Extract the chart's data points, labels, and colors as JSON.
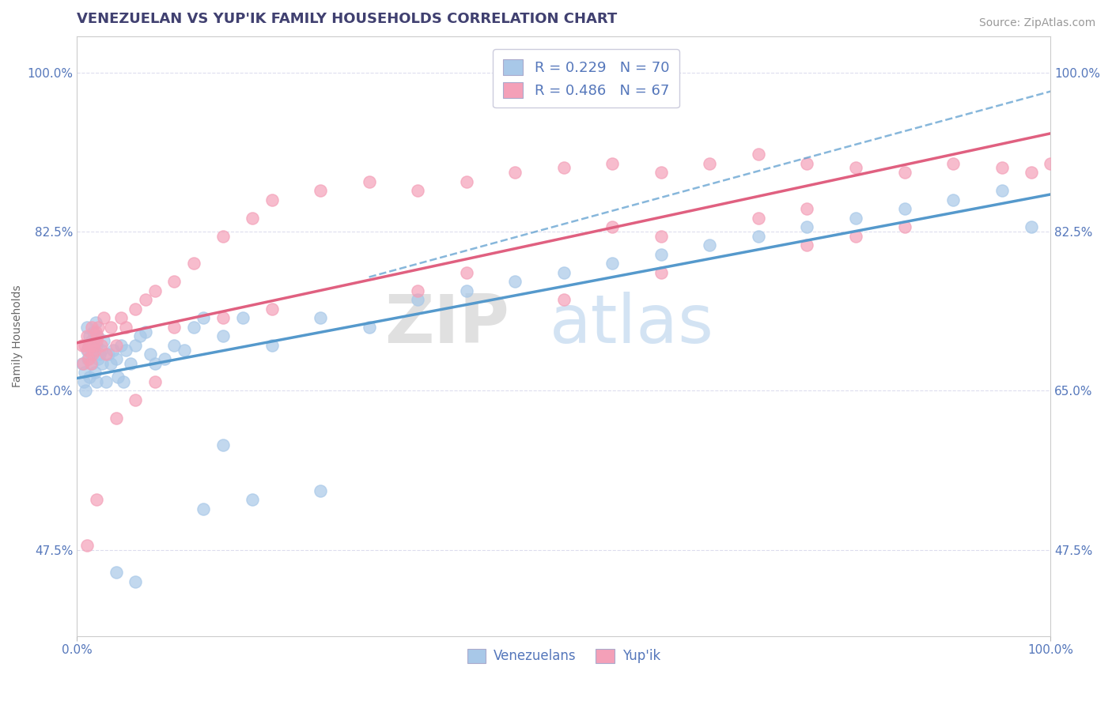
{
  "title": "VENEZUELAN VS YUP'IK FAMILY HOUSEHOLDS CORRELATION CHART",
  "source": "Source: ZipAtlas.com",
  "ylabel": "Family Households",
  "legend_blue_r": "R = 0.229",
  "legend_blue_n": "N = 70",
  "legend_pink_r": "R = 0.486",
  "legend_pink_n": "N = 67",
  "legend_label_blue": "Venezuelans",
  "legend_label_pink": "Yup'ik",
  "blue_color": "#A8C8E8",
  "pink_color": "#F4A0B8",
  "trend_blue_color": "#5599CC",
  "trend_pink_color": "#E06080",
  "title_color": "#404070",
  "axis_color": "#5577BB",
  "watermark_zip": "ZIP",
  "watermark_atlas": "atlas",
  "xlim": [
    0.0,
    1.0
  ],
  "ylim": [
    0.38,
    1.04
  ],
  "y_ticks": [
    0.475,
    0.65,
    0.825,
    1.0
  ],
  "y_tick_str": [
    "47.5%",
    "65.0%",
    "82.5%",
    "100.0%"
  ],
  "x_ticks": [
    0.0,
    1.0
  ],
  "x_tick_str": [
    "0.0%",
    "100.0%"
  ],
  "blue_scatter_x": [
    0.005,
    0.007,
    0.008,
    0.009,
    0.01,
    0.01,
    0.011,
    0.012,
    0.013,
    0.013,
    0.014,
    0.015,
    0.015,
    0.016,
    0.017,
    0.018,
    0.019,
    0.02,
    0.02,
    0.021,
    0.022,
    0.023,
    0.025,
    0.026,
    0.027,
    0.03,
    0.032,
    0.035,
    0.037,
    0.04,
    0.042,
    0.045,
    0.048,
    0.05,
    0.055,
    0.06,
    0.065,
    0.07,
    0.075,
    0.08,
    0.09,
    0.1,
    0.11,
    0.12,
    0.13,
    0.15,
    0.17,
    0.2,
    0.25,
    0.3,
    0.35,
    0.4,
    0.45,
    0.5,
    0.55,
    0.6,
    0.65,
    0.7,
    0.75,
    0.8,
    0.85,
    0.9,
    0.95,
    0.98,
    0.15,
    0.25,
    0.18,
    0.13,
    0.04,
    0.06
  ],
  "blue_scatter_y": [
    0.68,
    0.66,
    0.67,
    0.65,
    0.72,
    0.695,
    0.685,
    0.7,
    0.71,
    0.665,
    0.69,
    0.705,
    0.68,
    0.695,
    0.715,
    0.67,
    0.725,
    0.66,
    0.7,
    0.71,
    0.685,
    0.69,
    0.695,
    0.68,
    0.705,
    0.66,
    0.69,
    0.68,
    0.695,
    0.685,
    0.665,
    0.7,
    0.66,
    0.695,
    0.68,
    0.7,
    0.71,
    0.715,
    0.69,
    0.68,
    0.685,
    0.7,
    0.695,
    0.72,
    0.73,
    0.71,
    0.73,
    0.7,
    0.73,
    0.72,
    0.75,
    0.76,
    0.77,
    0.78,
    0.79,
    0.8,
    0.81,
    0.82,
    0.83,
    0.84,
    0.85,
    0.86,
    0.87,
    0.83,
    0.59,
    0.54,
    0.53,
    0.52,
    0.45,
    0.44
  ],
  "pink_scatter_x": [
    0.005,
    0.006,
    0.008,
    0.01,
    0.011,
    0.012,
    0.013,
    0.014,
    0.015,
    0.016,
    0.017,
    0.018,
    0.019,
    0.02,
    0.021,
    0.022,
    0.025,
    0.027,
    0.03,
    0.035,
    0.04,
    0.045,
    0.05,
    0.06,
    0.07,
    0.08,
    0.1,
    0.12,
    0.15,
    0.18,
    0.2,
    0.25,
    0.3,
    0.35,
    0.4,
    0.45,
    0.5,
    0.55,
    0.6,
    0.65,
    0.7,
    0.75,
    0.8,
    0.85,
    0.9,
    0.95,
    0.98,
    1.0,
    0.55,
    0.6,
    0.7,
    0.75,
    0.8,
    0.75,
    0.85,
    0.6,
    0.4,
    0.5,
    0.35,
    0.2,
    0.15,
    0.1,
    0.08,
    0.06,
    0.04,
    0.02,
    0.01
  ],
  "pink_scatter_y": [
    0.7,
    0.68,
    0.7,
    0.71,
    0.695,
    0.685,
    0.7,
    0.68,
    0.72,
    0.69,
    0.7,
    0.695,
    0.715,
    0.705,
    0.71,
    0.72,
    0.7,
    0.73,
    0.69,
    0.72,
    0.7,
    0.73,
    0.72,
    0.74,
    0.75,
    0.76,
    0.77,
    0.79,
    0.82,
    0.84,
    0.86,
    0.87,
    0.88,
    0.87,
    0.88,
    0.89,
    0.895,
    0.9,
    0.89,
    0.9,
    0.91,
    0.9,
    0.895,
    0.89,
    0.9,
    0.895,
    0.89,
    0.9,
    0.83,
    0.82,
    0.84,
    0.81,
    0.82,
    0.85,
    0.83,
    0.78,
    0.78,
    0.75,
    0.76,
    0.74,
    0.73,
    0.72,
    0.66,
    0.64,
    0.62,
    0.53,
    0.48
  ],
  "title_fontsize": 13,
  "label_fontsize": 10,
  "tick_fontsize": 11,
  "source_fontsize": 10
}
